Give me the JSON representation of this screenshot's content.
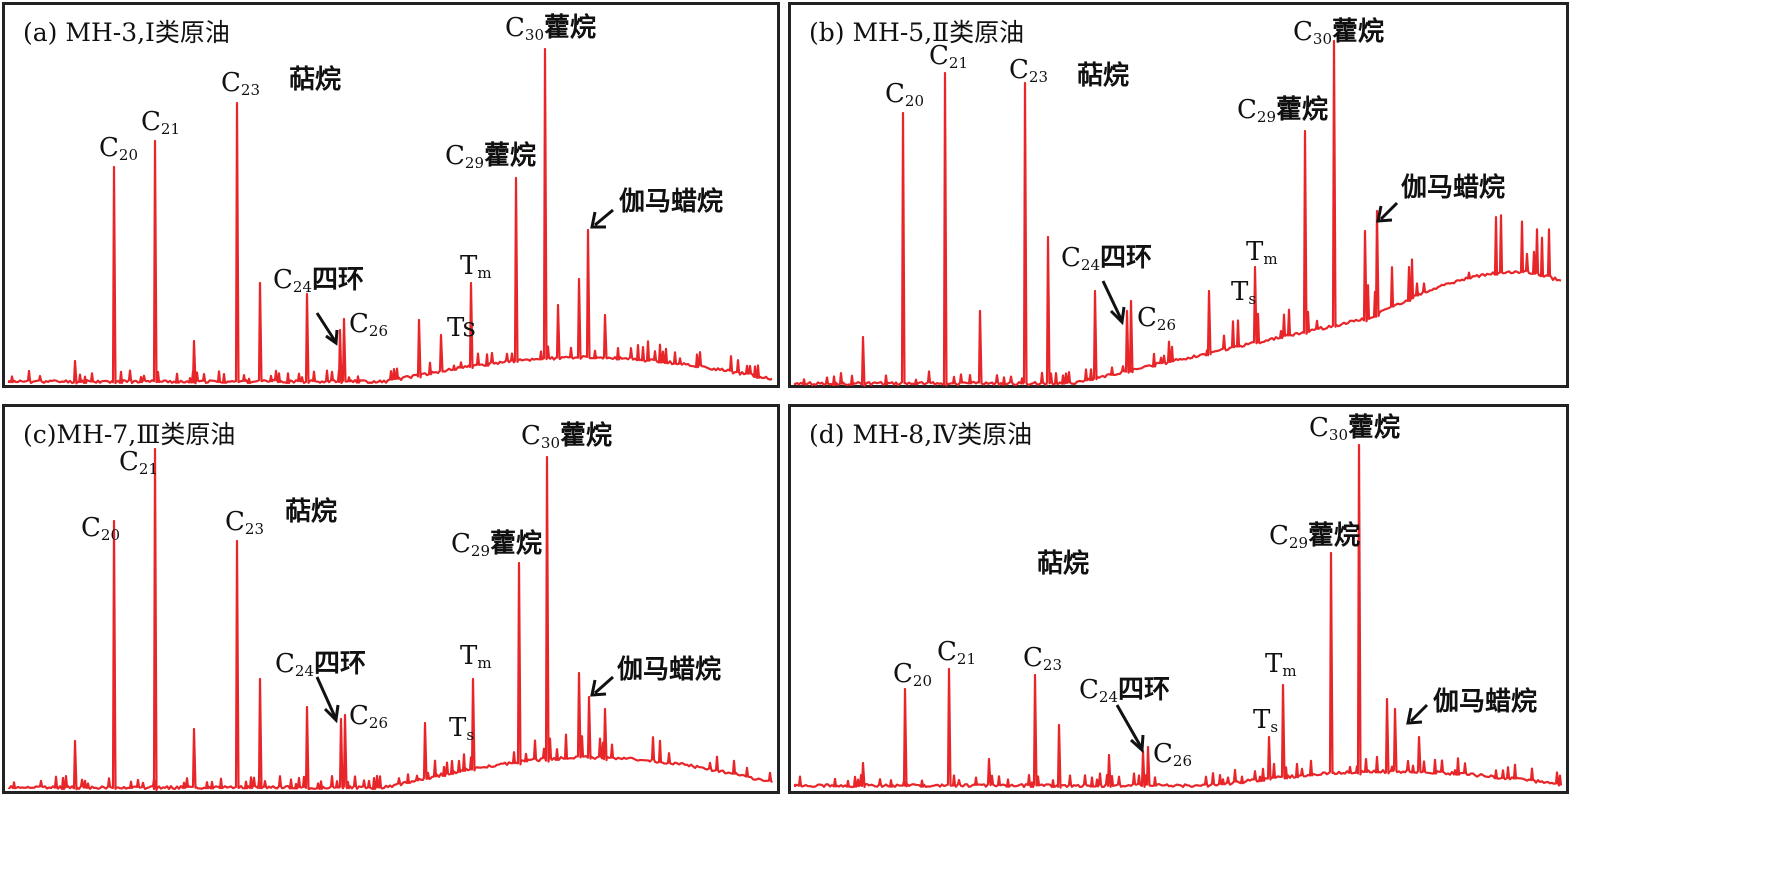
{
  "figure": {
    "panels": [
      {
        "id": "a",
        "title": "(a) MH-3,Ⅰ类原油",
        "labels": {
          "c20": {
            "pre": "C",
            "sub": "20",
            "post": ""
          },
          "c21": {
            "pre": "C",
            "sub": "21",
            "post": ""
          },
          "c23": {
            "pre": "C",
            "sub": "23",
            "post": ""
          },
          "terpane": {
            "pre": "萜烷",
            "sub": "",
            "post": ""
          },
          "c24": {
            "pre": "C",
            "sub": "24",
            "post": "四环"
          },
          "c26": {
            "pre": "C",
            "sub": "26",
            "post": ""
          },
          "ts": {
            "pre": "Ts",
            "sub": "",
            "post": ""
          },
          "tm": {
            "pre": "T",
            "sub": "m",
            "post": ""
          },
          "c29": {
            "pre": "C",
            "sub": "29",
            "post": "藿烷"
          },
          "c30": {
            "pre": "C",
            "sub": "30",
            "post": "藿烷"
          },
          "gammacerane": {
            "pre": "伽马蜡烷",
            "sub": "",
            "post": ""
          }
        }
      },
      {
        "id": "b",
        "title": "(b) MH-5,Ⅱ类原油",
        "labels": {
          "c20": {
            "pre": "C",
            "sub": "20",
            "post": ""
          },
          "c21": {
            "pre": "C",
            "sub": "21",
            "post": ""
          },
          "c23": {
            "pre": "C",
            "sub": "23",
            "post": ""
          },
          "terpane": {
            "pre": "萜烷",
            "sub": "",
            "post": ""
          },
          "c24": {
            "pre": "C",
            "sub": "24",
            "post": "四环"
          },
          "c26": {
            "pre": "C",
            "sub": "26",
            "post": ""
          },
          "ts": {
            "pre": "T",
            "sub": "s",
            "post": ""
          },
          "tm": {
            "pre": "T",
            "sub": "m",
            "post": ""
          },
          "c29": {
            "pre": "C",
            "sub": "29",
            "post": "藿烷"
          },
          "c30": {
            "pre": "C",
            "sub": "30",
            "post": "藿烷"
          },
          "gammacerane": {
            "pre": "伽马蜡烷",
            "sub": "",
            "post": ""
          }
        }
      },
      {
        "id": "c",
        "title": "(c)MH-7,Ⅲ类原油",
        "labels": {
          "c20": {
            "pre": "C",
            "sub": "20",
            "post": ""
          },
          "c21": {
            "pre": "C",
            "sub": "21",
            "post": ""
          },
          "c23": {
            "pre": "C",
            "sub": "23",
            "post": ""
          },
          "terpane": {
            "pre": "萜烷",
            "sub": "",
            "post": ""
          },
          "c24": {
            "pre": "C",
            "sub": "24",
            "post": "四环"
          },
          "c26": {
            "pre": "C",
            "sub": "26",
            "post": ""
          },
          "ts": {
            "pre": "T",
            "sub": "s",
            "post": ""
          },
          "tm": {
            "pre": "T",
            "sub": "m",
            "post": ""
          },
          "c29": {
            "pre": "C",
            "sub": "29",
            "post": "藿烷"
          },
          "c30": {
            "pre": "C",
            "sub": "30",
            "post": "藿烷"
          },
          "gammacerane": {
            "pre": "伽马蜡烷",
            "sub": "",
            "post": ""
          }
        }
      },
      {
        "id": "d",
        "title": "(d) MH-8,Ⅳ类原油",
        "labels": {
          "c20": {
            "pre": "C",
            "sub": "20",
            "post": ""
          },
          "c21": {
            "pre": "C",
            "sub": "21",
            "post": ""
          },
          "c23": {
            "pre": "C",
            "sub": "23",
            "post": ""
          },
          "terpane": {
            "pre": "萜烷",
            "sub": "",
            "post": ""
          },
          "c24": {
            "pre": "C",
            "sub": "24",
            "post": "四环"
          },
          "c26": {
            "pre": "C",
            "sub": "26",
            "post": ""
          },
          "ts": {
            "pre": "T",
            "sub": "s",
            "post": ""
          },
          "tm": {
            "pre": "T",
            "sub": "m",
            "post": ""
          },
          "c29": {
            "pre": "C",
            "sub": "29",
            "post": "藿烷"
          },
          "c30": {
            "pre": "C",
            "sub": "30",
            "post": "藿烷"
          },
          "gammacerane": {
            "pre": "伽马蜡烷",
            "sub": "",
            "post": ""
          }
        }
      }
    ],
    "trace_color": "#e8262a",
    "frame_color": "#222222"
  }
}
